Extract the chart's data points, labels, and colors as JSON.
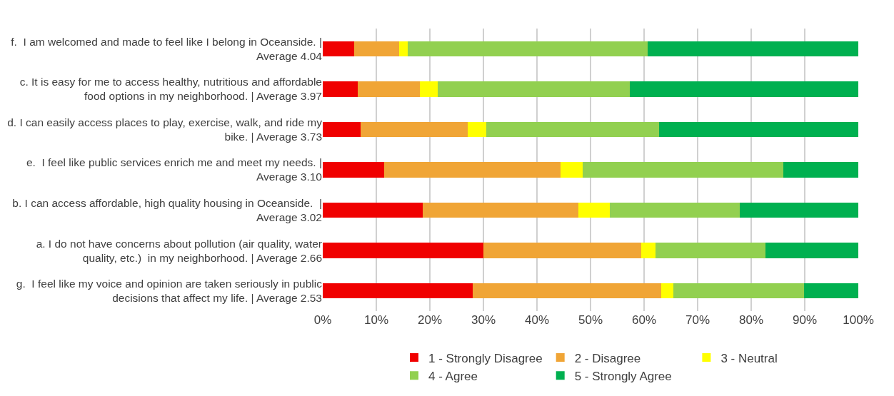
{
  "chart_data": {
    "type": "bar",
    "orientation": "horizontal",
    "stacked": true,
    "categories": [
      "f.  I am welcomed and made to feel like I belong in Oceanside. |\nAverage 4.04",
      "c. It is easy for me to access healthy, nutritious and affordable\nfood options in my neighborhood. | Average 3.97",
      "d. I can easily access places to play, exercise, walk, and ride my\nbike. | Average 3.73",
      "e.  I feel like public services enrich me and meet my needs. |\nAverage 3.10",
      "b. I can access affordable, high quality housing in Oceanside.  |\nAverage 3.02",
      "a. I do not have concerns about pollution (air quality, water\nquality, etc.)  in my neighborhood. | Average 2.66",
      "g.  I feel like my voice and opinion are taken seriously in public\ndecisions that affect my life. | Average 2.53"
    ],
    "series": [
      {
        "name": "1 - Strongly Disagree",
        "color": "#f00000",
        "values": [
          5.8,
          6.5,
          7.1,
          11.5,
          18.6,
          30.0,
          28.0
        ]
      },
      {
        "name": "2 - Disagree",
        "color": "#f0a536",
        "values": [
          8.4,
          11.6,
          19.9,
          32.9,
          29.1,
          29.4,
          35.2
        ]
      },
      {
        "name": "3 - Neutral",
        "color": "#ffff00",
        "values": [
          1.7,
          3.3,
          3.5,
          4.1,
          5.9,
          2.7,
          2.3
        ]
      },
      {
        "name": "4 - Agree",
        "color": "#92d050",
        "values": [
          44.7,
          35.9,
          32.3,
          37.5,
          24.3,
          20.5,
          24.4
        ]
      },
      {
        "name": "5 - Strongly Agree",
        "color": "#00b050",
        "values": [
          39.4,
          42.7,
          37.2,
          14.0,
          22.1,
          17.4,
          10.1
        ]
      }
    ],
    "xlim": [
      0,
      100
    ],
    "xticks": [
      {
        "value": 0,
        "label": "0%"
      },
      {
        "value": 10,
        "label": "10%"
      },
      {
        "value": 20,
        "label": "20%"
      },
      {
        "value": 30,
        "label": "30%"
      },
      {
        "value": 40,
        "label": "40%"
      },
      {
        "value": 50,
        "label": "50%"
      },
      {
        "value": 60,
        "label": "60%"
      },
      {
        "value": 70,
        "label": "70%"
      },
      {
        "value": 80,
        "label": "80%"
      },
      {
        "value": 90,
        "label": "90%"
      },
      {
        "value": 100,
        "label": "100%"
      }
    ],
    "grid": "x",
    "legend": "bottom"
  }
}
